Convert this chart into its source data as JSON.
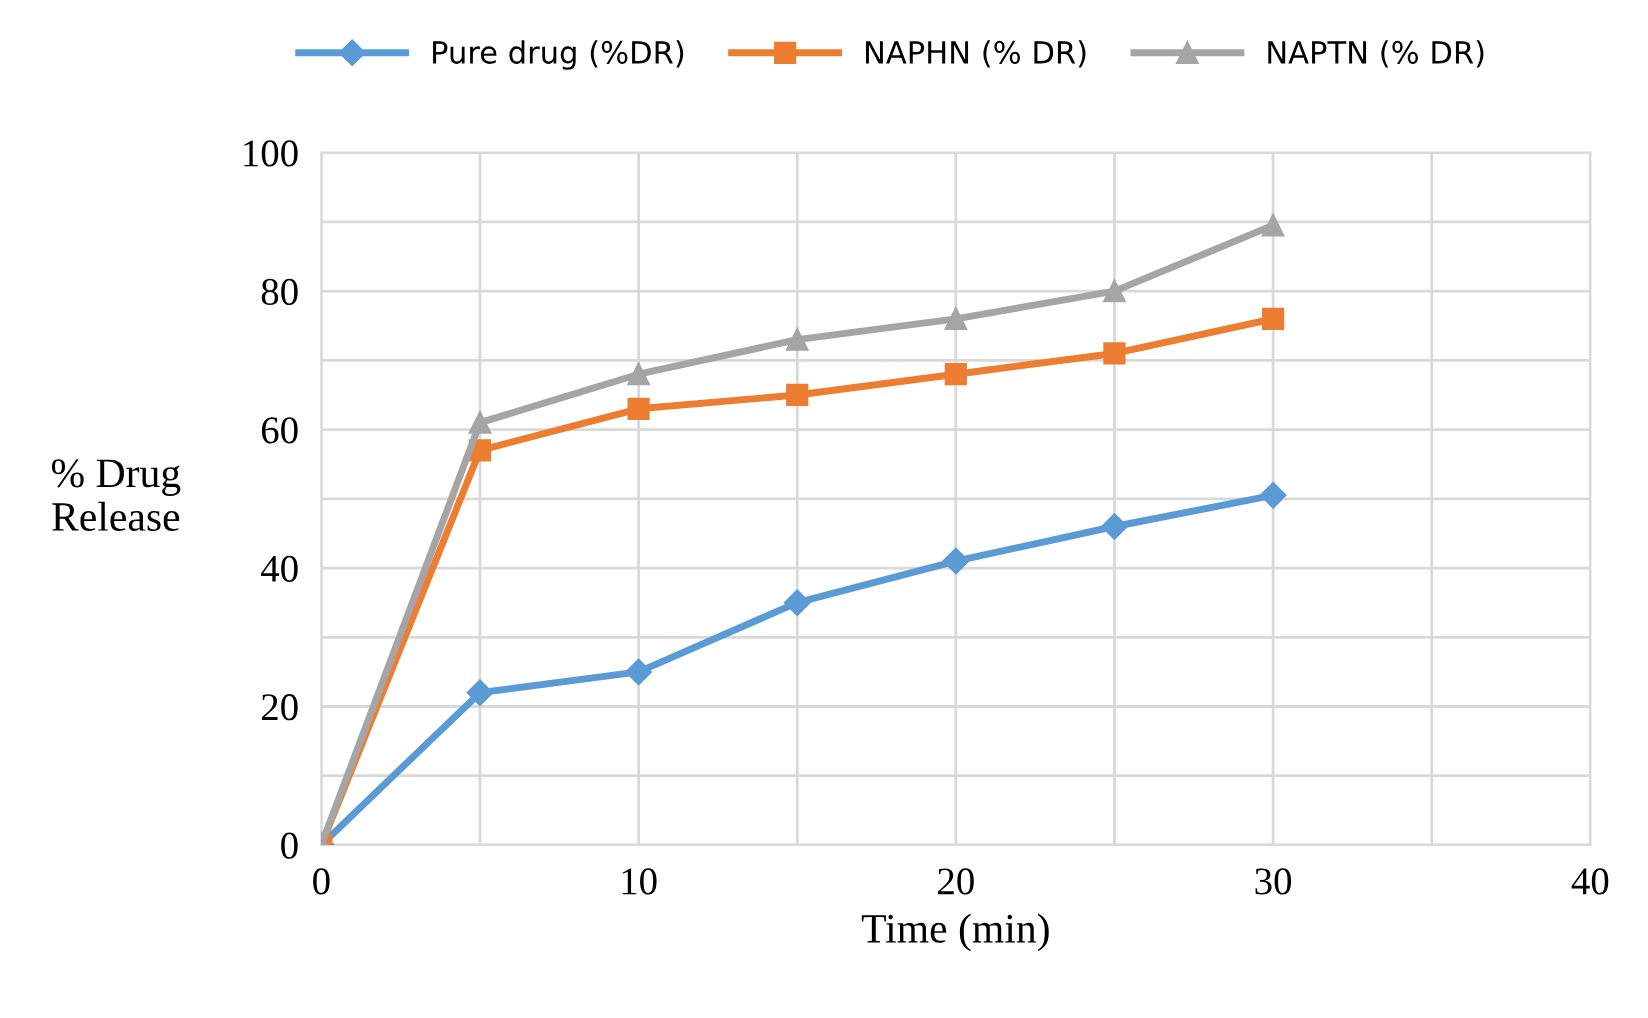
{
  "chart_data": {
    "type": "line",
    "xlabel": "Time (min)",
    "ylabel": "% Drug\nRelease",
    "x": [
      0,
      5,
      10,
      15,
      20,
      25,
      30
    ],
    "series": [
      {
        "name": "Pure drug (%DR)",
        "color": "#5b9bd5",
        "marker": "diamond",
        "values": [
          0,
          22,
          25,
          35,
          41,
          46,
          50.5
        ]
      },
      {
        "name": "NAPHN (% DR)",
        "color": "#ed7d31",
        "marker": "square",
        "values": [
          0,
          57,
          63,
          65,
          68,
          71,
          76
        ]
      },
      {
        "name": "NAPTN (% DR)",
        "color": "#a5a5a5",
        "marker": "triangle",
        "values": [
          0,
          61,
          68,
          73,
          76,
          80,
          89.5
        ]
      }
    ],
    "xlim": [
      0,
      40
    ],
    "ylim": [
      0,
      100
    ],
    "xticks": [
      0,
      {
        "value": 5,
        "label": null
      },
      10,
      {
        "value": 15,
        "label": null
      },
      20,
      {
        "value": 25,
        "label": null
      },
      30,
      {
        "value": 35,
        "label": null
      },
      40
    ],
    "yticks": [
      0,
      {
        "value": 10,
        "label": null
      },
      20,
      {
        "value": 30,
        "label": null
      },
      40,
      {
        "value": 50,
        "label": null
      },
      60,
      {
        "value": 70,
        "label": null
      },
      80,
      {
        "value": 90,
        "label": null
      },
      100
    ],
    "grid": true,
    "legend": "top",
    "line_style": "solid"
  }
}
